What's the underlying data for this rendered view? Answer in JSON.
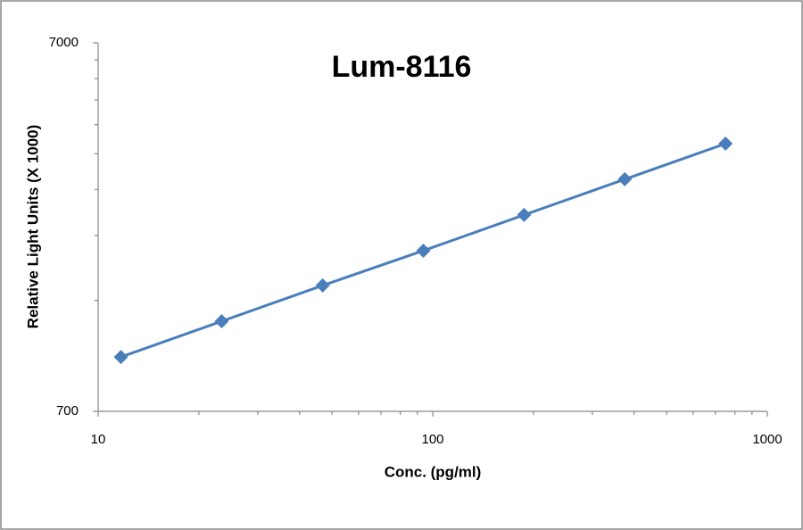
{
  "chart_data": {
    "type": "line",
    "title": "Lum-8116",
    "x_label": "Conc. (pg/ml)",
    "y_label": "Relative Light Units (X 1000)",
    "x": [
      11.7,
      23.4,
      46.9,
      93.75,
      187.5,
      375,
      750
    ],
    "series": [
      {
        "color": "#4a7ebb",
        "values": [
          983,
          1229,
          1537,
          1910,
          2388,
          2984,
          3728
        ]
      }
    ],
    "xscale": "log",
    "yscale": "log",
    "xlim": [
      10,
      1000
    ],
    "ylim": [
      700,
      7000
    ],
    "xticks": [
      10,
      100,
      1000
    ],
    "yticks": [
      700,
      7000
    ],
    "xminorticks": [
      20,
      30,
      40,
      50,
      60,
      70,
      80,
      90,
      200,
      300,
      400,
      500,
      600,
      700,
      800,
      900
    ],
    "yminorticks": [
      1400,
      2100,
      2800,
      3500,
      4200,
      4900,
      5600,
      6300
    ],
    "grid": false,
    "marker": "diamond"
  }
}
